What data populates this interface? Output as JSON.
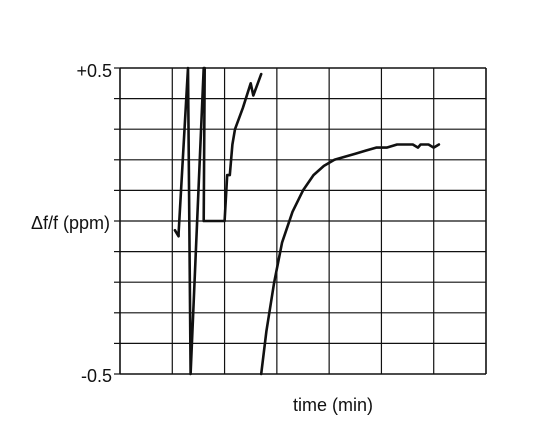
{
  "chart_data": {
    "type": "line",
    "title": "",
    "xlabel": "time (min)",
    "ylabel": "Δf/f (ppm)",
    "ylim": [
      -0.5,
      0.5
    ],
    "y_ticks": [
      {
        "value": 0.5,
        "label": "+0.5"
      },
      {
        "value": -0.5,
        "label": "-0.5"
      }
    ],
    "x_grid_divisions": 7,
    "y_grid_divisions": 10,
    "grid": true,
    "series": [
      {
        "color": "#111111",
        "x": [
          1.05,
          1.12,
          1.12,
          1.3,
          1.35,
          1.35,
          1.6,
          1.62,
          1.6,
          2.0,
          2.05,
          2.1,
          2.15,
          2.2,
          2.35,
          2.5,
          2.55,
          2.7,
          2.7
        ],
        "y": [
          -0.03,
          -0.05,
          -0.04,
          0.5,
          -0.5,
          -0.5,
          0.5,
          0.5,
          0.0,
          0.0,
          0.15,
          0.15,
          0.25,
          0.3,
          0.37,
          0.45,
          0.41,
          0.48,
          0.48
        ]
      },
      {
        "color": "#111111",
        "x": [
          2.7,
          2.8,
          2.95,
          3.1,
          3.3,
          3.5,
          3.7,
          3.9,
          4.1,
          4.3,
          4.5,
          4.7,
          4.9,
          5.1,
          5.3,
          5.5,
          5.6,
          5.7,
          5.75,
          5.8,
          5.9,
          6.0,
          6.1
        ],
        "y": [
          -0.5,
          -0.36,
          -0.2,
          -0.07,
          0.03,
          0.1,
          0.15,
          0.18,
          0.2,
          0.21,
          0.22,
          0.23,
          0.24,
          0.24,
          0.25,
          0.25,
          0.25,
          0.24,
          0.25,
          0.25,
          0.25,
          0.24,
          0.25
        ]
      }
    ]
  }
}
